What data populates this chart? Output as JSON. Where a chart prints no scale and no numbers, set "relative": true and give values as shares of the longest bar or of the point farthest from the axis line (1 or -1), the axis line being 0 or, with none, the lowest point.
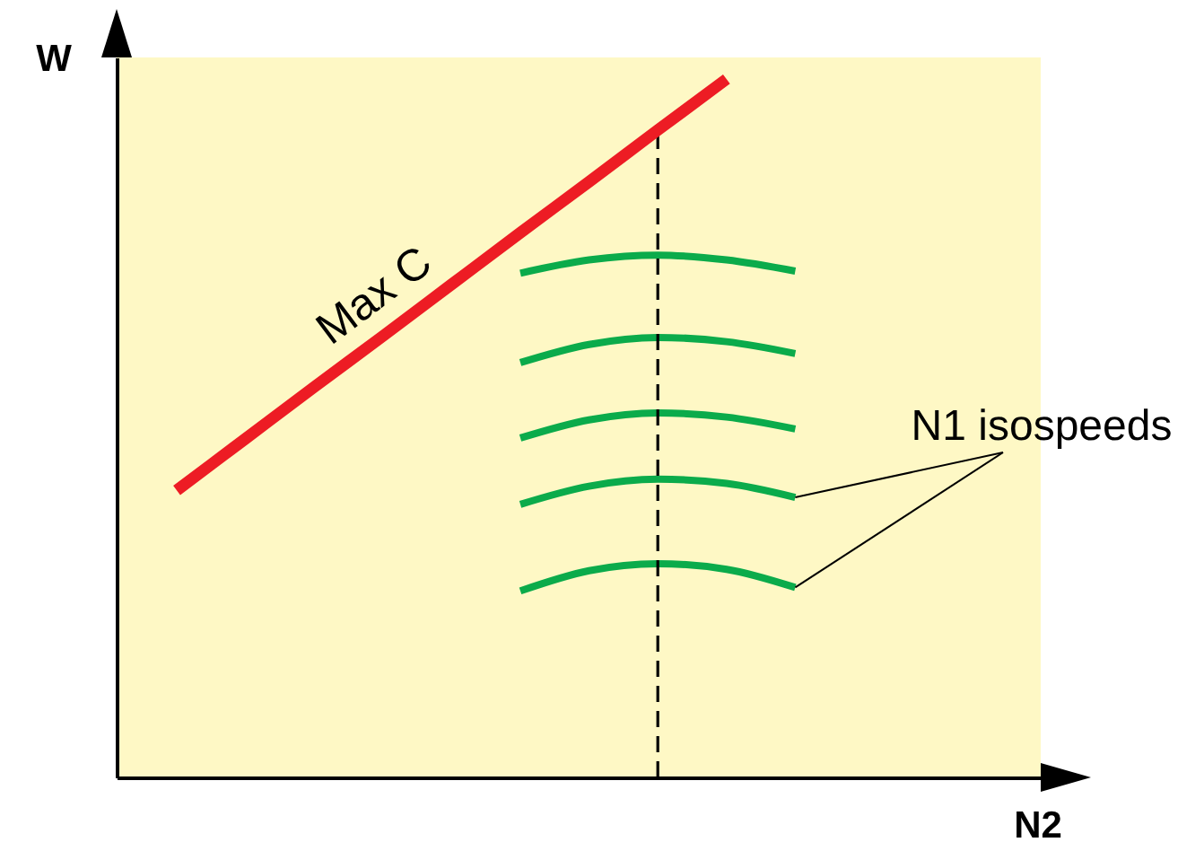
{
  "chart_data": {
    "type": "line",
    "xlabel": "N2",
    "ylabel": "W",
    "relative": true,
    "annotations": [
      "N1 isospeeds"
    ],
    "categories": [
      null,
      null,
      null,
      null,
      null,
      null,
      null,
      null,
      null,
      null
    ],
    "series": [
      {
        "color": "#0bab4b",
        "values": [
          null,
          null,
          null,
          null,
          null,
          0.722,
          0.741,
          0.748,
          0.741,
          0.725
        ]
      },
      {
        "color": "#0bab4b",
        "values": [
          null,
          null,
          null,
          null,
          null,
          0.594,
          0.62,
          0.63,
          0.624,
          0.607
        ]
      },
      {
        "color": "#0bab4b",
        "values": [
          null,
          null,
          null,
          null,
          null,
          0.486,
          0.512,
          0.522,
          0.516,
          0.499
        ]
      },
      {
        "color": "#0bab4b",
        "values": [
          null,
          null,
          null,
          null,
          null,
          0.391,
          0.417,
          0.427,
          0.421,
          0.401
        ]
      },
      {
        "color": "#0bab4b",
        "values": [
          null,
          null,
          null,
          null,
          null,
          0.267,
          0.296,
          0.306,
          0.298,
          0.272
        ]
      },
      {
        "name": "Max C",
        "color": "#ed1c24",
        "values": [
          0.411,
          0.485,
          0.559,
          0.632,
          0.706,
          0.78,
          0.853,
          0.927,
          1.0,
          null
        ]
      }
    ]
  }
}
